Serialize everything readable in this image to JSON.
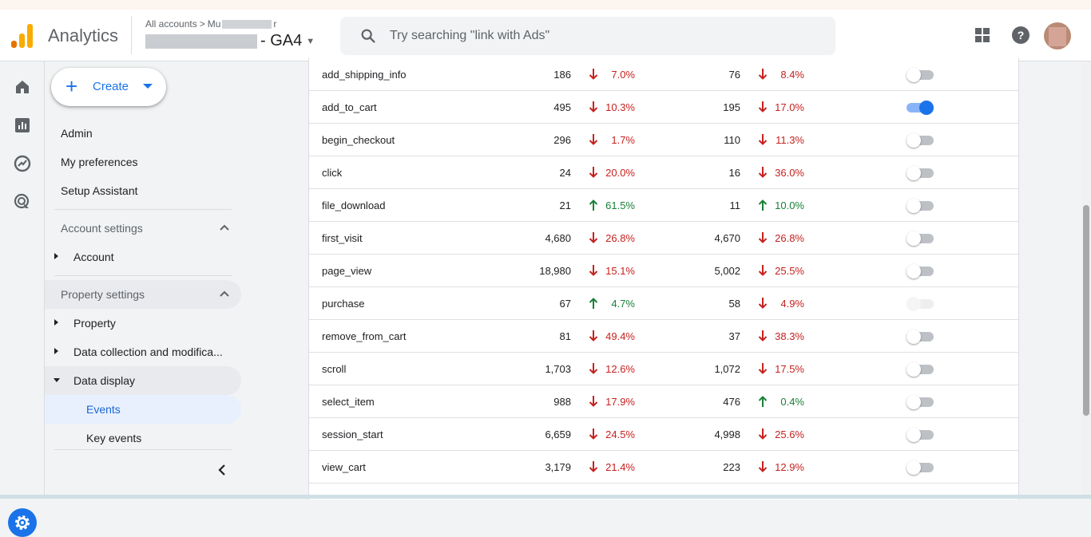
{
  "app": {
    "name": "Analytics"
  },
  "breadcrumb": {
    "all_accounts": "All accounts",
    "separator": ">",
    "account_partial": "Mu",
    "account_suffix": "r"
  },
  "property": {
    "name_visible": "- GA4"
  },
  "search": {
    "placeholder": "Try searching \"link with Ads\""
  },
  "sidebar": {
    "create_label": "Create",
    "admin": "Admin",
    "my_preferences": "My preferences",
    "setup_assistant": "Setup Assistant",
    "account_settings": "Account settings",
    "account": "Account",
    "property_settings": "Property settings",
    "property": "Property",
    "data_collection": "Data collection and modifica...",
    "data_display": "Data display",
    "events": "Events",
    "key_events": "Key events"
  },
  "colors": {
    "accent": "#1a73e8",
    "down": "#c5221f",
    "up": "#188038"
  },
  "events": [
    {
      "name": "add_shipping_info",
      "count": "186",
      "count_change": "7.0%",
      "count_dir": "down",
      "users": "76",
      "users_change": "8.4%",
      "users_dir": "down",
      "key_event": "off"
    },
    {
      "name": "add_to_cart",
      "count": "495",
      "count_change": "10.3%",
      "count_dir": "down",
      "users": "195",
      "users_change": "17.0%",
      "users_dir": "down",
      "key_event": "on"
    },
    {
      "name": "begin_checkout",
      "count": "296",
      "count_change": "1.7%",
      "count_dir": "down",
      "users": "110",
      "users_change": "11.3%",
      "users_dir": "down",
      "key_event": "off"
    },
    {
      "name": "click",
      "count": "24",
      "count_change": "20.0%",
      "count_dir": "down",
      "users": "16",
      "users_change": "36.0%",
      "users_dir": "down",
      "key_event": "off"
    },
    {
      "name": "file_download",
      "count": "21",
      "count_change": "61.5%",
      "count_dir": "up",
      "users": "11",
      "users_change": "10.0%",
      "users_dir": "up",
      "key_event": "off"
    },
    {
      "name": "first_visit",
      "count": "4,680",
      "count_change": "26.8%",
      "count_dir": "down",
      "users": "4,670",
      "users_change": "26.8%",
      "users_dir": "down",
      "key_event": "off"
    },
    {
      "name": "page_view",
      "count": "18,980",
      "count_change": "15.1%",
      "count_dir": "down",
      "users": "5,002",
      "users_change": "25.5%",
      "users_dir": "down",
      "key_event": "off"
    },
    {
      "name": "purchase",
      "count": "67",
      "count_change": "4.7%",
      "count_dir": "up",
      "users": "58",
      "users_change": "4.9%",
      "users_dir": "down",
      "key_event": "disabled"
    },
    {
      "name": "remove_from_cart",
      "count": "81",
      "count_change": "49.4%",
      "count_dir": "down",
      "users": "37",
      "users_change": "38.3%",
      "users_dir": "down",
      "key_event": "off"
    },
    {
      "name": "scroll",
      "count": "1,703",
      "count_change": "12.6%",
      "count_dir": "down",
      "users": "1,072",
      "users_change": "17.5%",
      "users_dir": "down",
      "key_event": "off"
    },
    {
      "name": "select_item",
      "count": "988",
      "count_change": "17.9%",
      "count_dir": "down",
      "users": "476",
      "users_change": "0.4%",
      "users_dir": "up",
      "key_event": "off"
    },
    {
      "name": "session_start",
      "count": "6,659",
      "count_change": "24.5%",
      "count_dir": "down",
      "users": "4,998",
      "users_change": "25.6%",
      "users_dir": "down",
      "key_event": "off"
    },
    {
      "name": "view_cart",
      "count": "3,179",
      "count_change": "21.4%",
      "count_dir": "down",
      "users": "223",
      "users_change": "12.9%",
      "users_dir": "down",
      "key_event": "off"
    }
  ],
  "icons": [
    "analytics-logo",
    "search-icon",
    "apps-grid-icon",
    "help-icon",
    "home-icon",
    "reports-icon",
    "explore-icon",
    "advertising-icon",
    "settings-icon",
    "collapse-chevron-icon",
    "arrow-down-icon",
    "arrow-up-icon"
  ]
}
